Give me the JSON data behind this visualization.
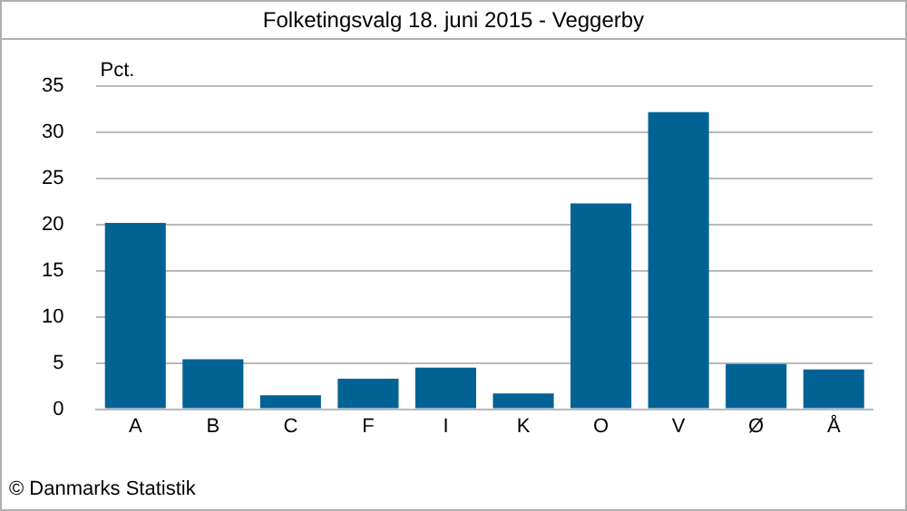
{
  "chart_data": {
    "type": "bar",
    "title": "Folketingsvalg 18. juni 2015 - Veggerby",
    "ylabel": "Pct.",
    "categories": [
      "A",
      "B",
      "C",
      "F",
      "I",
      "K",
      "O",
      "V",
      "Ø",
      "Å"
    ],
    "values": [
      20.2,
      5.4,
      1.5,
      3.3,
      4.5,
      1.7,
      22.3,
      32.2,
      4.9,
      4.3
    ],
    "color": "#006394",
    "ylim": [
      0,
      35
    ],
    "yticks": [
      0,
      5,
      10,
      15,
      20,
      25,
      30,
      35
    ],
    "grid": "y",
    "annotations": [
      "© Danmarks Statistik"
    ]
  }
}
